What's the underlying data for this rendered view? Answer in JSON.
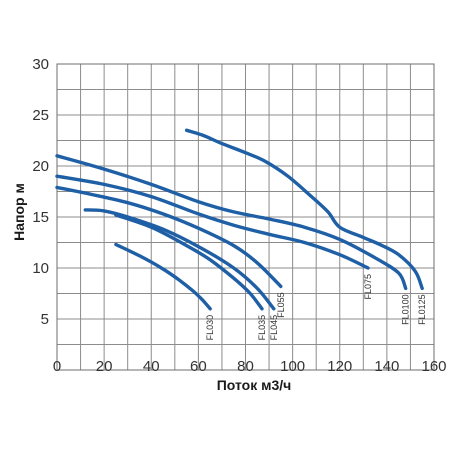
{
  "chart_data": {
    "type": "line",
    "xlabel": "Поток м3/ч",
    "ylabel": "Напор м",
    "xlim": [
      0,
      160
    ],
    "ylim": [
      0,
      30
    ],
    "x_ticks": [
      "0",
      "20",
      "40",
      "60",
      "80",
      "100",
      "120",
      "140",
      "160"
    ],
    "y_ticks": [
      "5",
      "10",
      "15",
      "20",
      "25",
      "30"
    ],
    "x_grid_step": 10,
    "y_grid_step": 2.5,
    "grid": true,
    "line_color": "#1f5fa6",
    "series": [
      {
        "name": "FL030",
        "x": [
          25,
          35,
          45,
          52,
          58,
          62,
          65
        ],
        "y": [
          12.3,
          11.2,
          9.9,
          8.8,
          7.7,
          6.8,
          6.0
        ]
      },
      {
        "name": "FL035",
        "x": [
          25,
          40,
          55,
          65,
          75,
          82,
          87
        ],
        "y": [
          15.2,
          14.0,
          12.2,
          10.8,
          9.0,
          7.5,
          6.0
        ]
      },
      {
        "name": "FL045",
        "x": [
          12,
          20,
          30,
          45,
          60,
          75,
          85,
          92
        ],
        "y": [
          15.7,
          15.6,
          15.0,
          13.8,
          12.1,
          10.0,
          8.0,
          6.0
        ]
      },
      {
        "name": "FL055",
        "x": [
          0,
          15,
          30,
          45,
          60,
          75,
          85,
          95
        ],
        "y": [
          17.9,
          17.2,
          16.4,
          15.3,
          13.9,
          12.2,
          10.5,
          8.2
        ]
      },
      {
        "name": "FL075",
        "x": [
          0,
          20,
          40,
          60,
          75,
          90,
          105,
          120,
          132
        ],
        "y": [
          19.0,
          18.2,
          17.0,
          15.3,
          14.2,
          13.3,
          12.5,
          11.3,
          10.0
        ]
      },
      {
        "name": "FL0100",
        "x": [
          0,
          20,
          40,
          60,
          75,
          90,
          105,
          120,
          135,
          145,
          148
        ],
        "y": [
          21.0,
          19.7,
          18.2,
          16.5,
          15.5,
          14.8,
          14.0,
          12.8,
          11.0,
          9.5,
          8.0
        ]
      },
      {
        "name": "FL0125",
        "x": [
          55,
          62,
          70,
          80,
          88,
          98,
          108,
          115,
          120,
          130,
          138,
          145,
          152,
          155
        ],
        "y": [
          23.5,
          23.0,
          22.2,
          21.3,
          20.5,
          19.0,
          17.0,
          15.5,
          14.0,
          13.0,
          12.2,
          11.3,
          9.7,
          8.0
        ]
      }
    ]
  }
}
